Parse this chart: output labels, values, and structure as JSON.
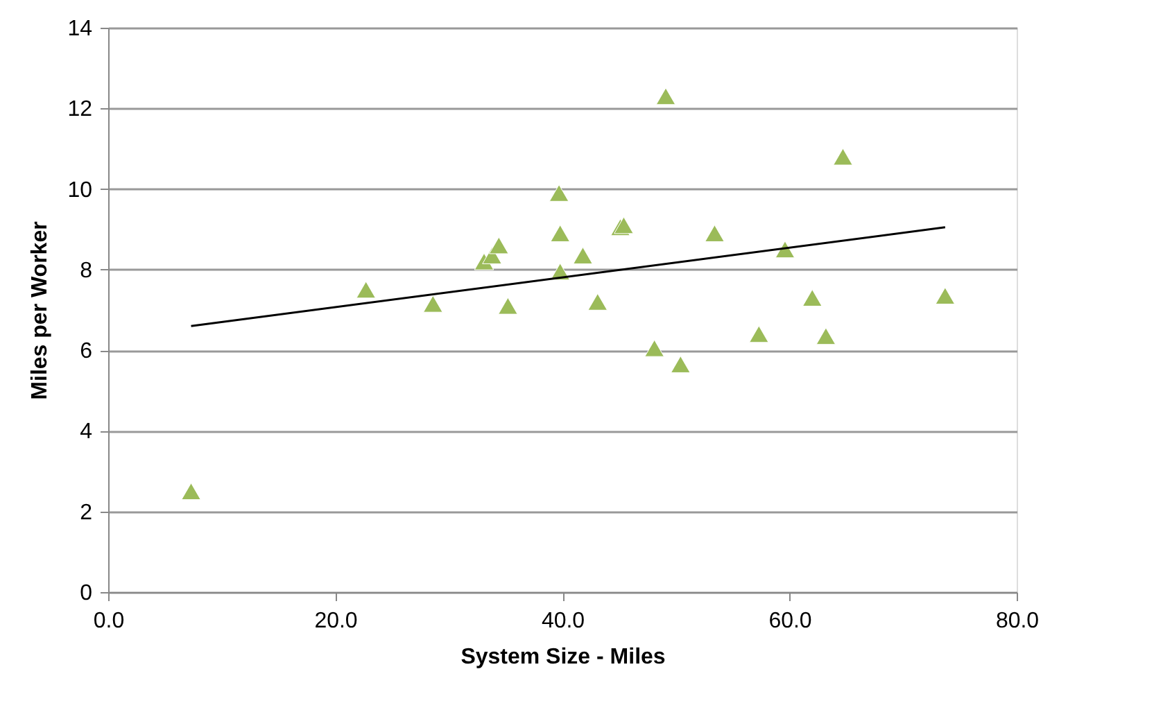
{
  "chart_data": {
    "type": "scatter",
    "xlabel": "System Size  - Miles",
    "ylabel": "Miles per Worker",
    "xlim": [
      0,
      80
    ],
    "ylim": [
      0,
      14
    ],
    "xticks": [
      {
        "value": 0,
        "label": "0.0"
      },
      {
        "value": 20,
        "label": "20.0"
      },
      {
        "value": 40,
        "label": "40.0"
      },
      {
        "value": 60,
        "label": "60.0"
      },
      {
        "value": 80,
        "label": "80.0"
      }
    ],
    "yticks": [
      0,
      2,
      4,
      6,
      8,
      10,
      12,
      14
    ],
    "grid": "y",
    "legend": false,
    "series": [
      {
        "type": "scatter",
        "color": "#9bbb59",
        "marker": "triangle",
        "x": [
          7.3,
          22.7,
          28.6,
          33.1,
          33.8,
          34.4,
          35.2,
          39.7,
          39.8,
          39.8,
          41.8,
          43.1,
          45.1,
          45.4,
          48.1,
          49.1,
          50.4,
          53.4,
          57.3,
          59.6,
          62.0,
          63.2,
          64.7,
          73.7
        ],
        "values": [
          2.5,
          7.5,
          7.15,
          8.2,
          8.35,
          8.6,
          7.1,
          9.9,
          8.9,
          7.95,
          8.35,
          7.2,
          9.05,
          9.1,
          6.05,
          12.3,
          5.65,
          8.9,
          6.4,
          8.5,
          7.3,
          6.35,
          10.8,
          7.35
        ]
      },
      {
        "type": "line",
        "color": "#000000",
        "x": [
          7.3,
          73.7
        ],
        "values": [
          6.6,
          9.05
        ]
      }
    ]
  }
}
